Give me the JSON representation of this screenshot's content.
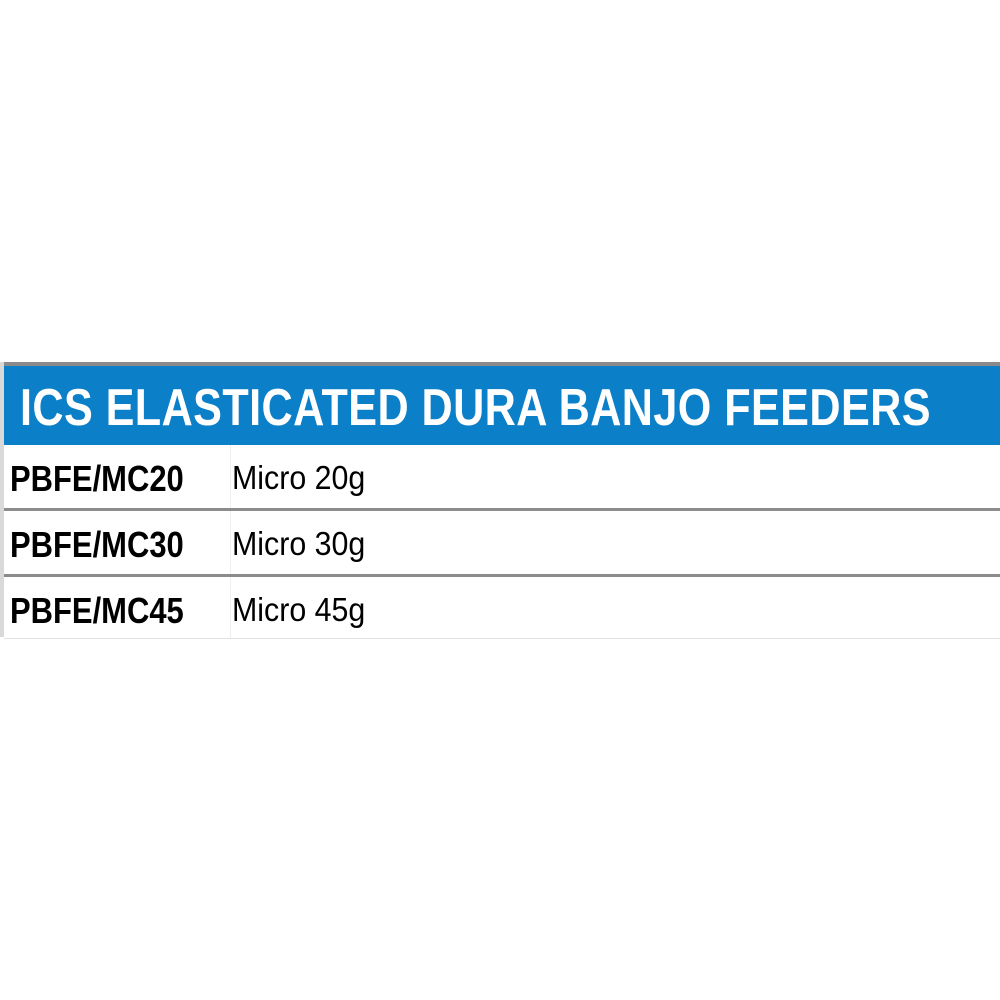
{
  "title": "ICS ELASTICATED DURA BANJO FEEDERS",
  "colors": {
    "header_bg": "#0b7fc7",
    "header_text": "#ffffff",
    "divider": "#8c8c8c"
  },
  "rows": [
    {
      "code": "PBFE/MC20",
      "description": "Micro 20g"
    },
    {
      "code": "PBFE/MC30",
      "description": "Micro 30g"
    },
    {
      "code": "PBFE/MC45",
      "description": "Micro 45g"
    }
  ]
}
